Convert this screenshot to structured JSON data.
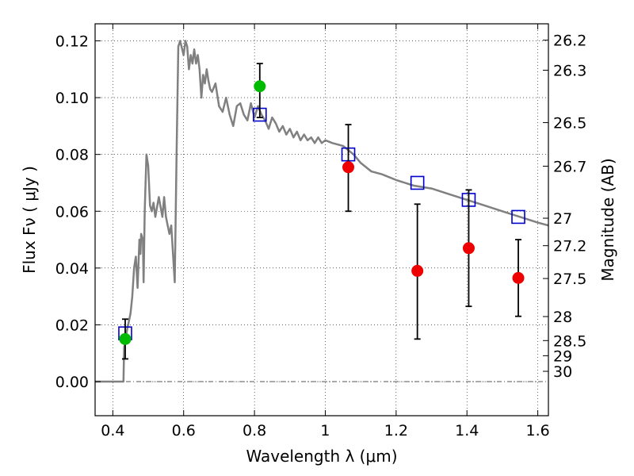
{
  "chart_data": {
    "type": "scatter",
    "xlabel": "Wavelength  λ (μm)",
    "ylabel": "Flux  Fν ( μJy )",
    "ylabel_right": "Magnitude (AB)",
    "xlim": [
      0.35,
      1.63
    ],
    "ylim": [
      -0.012,
      0.126
    ],
    "grid": true,
    "x_ticks": [
      {
        "value": 0.4,
        "label": "0.4"
      },
      {
        "value": 0.6,
        "label": "0.6"
      },
      {
        "value": 0.8,
        "label": "0.8"
      },
      {
        "value": 1.0,
        "label": "1"
      },
      {
        "value": 1.2,
        "label": "1.2"
      },
      {
        "value": 1.4,
        "label": "1.4"
      },
      {
        "value": 1.6,
        "label": "1.6"
      }
    ],
    "y_ticks": [
      {
        "value": 0.0,
        "label": "0.00"
      },
      {
        "value": 0.02,
        "label": "0.02"
      },
      {
        "value": 0.04,
        "label": "0.04"
      },
      {
        "value": 0.06,
        "label": "0.06"
      },
      {
        "value": 0.08,
        "label": "0.08"
      },
      {
        "value": 0.1,
        "label": "0.10"
      },
      {
        "value": 0.12,
        "label": "0.12"
      }
    ],
    "right_ticks": [
      {
        "value": 26.2,
        "label": "26.2"
      },
      {
        "value": 26.3,
        "label": "26.3"
      },
      {
        "value": 26.5,
        "label": "26.5"
      },
      {
        "value": 26.7,
        "label": "26.7"
      },
      {
        "value": 27.0,
        "label": "27"
      },
      {
        "value": 27.2,
        "label": "27.2"
      },
      {
        "value": 27.5,
        "label": "27.5"
      },
      {
        "value": 28.0,
        "label": "28"
      },
      {
        "value": 28.5,
        "label": "28.5"
      },
      {
        "value": 29.0,
        "label": "29"
      },
      {
        "value": 30.0,
        "label": "30"
      }
    ],
    "series": [
      {
        "kind": "line",
        "color": "#808080",
        "x": [
          0.35,
          0.43,
          0.432,
          0.44,
          0.45,
          0.455,
          0.46,
          0.465,
          0.47,
          0.475,
          0.478,
          0.48,
          0.485,
          0.487,
          0.49,
          0.495,
          0.5,
          0.505,
          0.51,
          0.515,
          0.52,
          0.53,
          0.54,
          0.545,
          0.55,
          0.555,
          0.56,
          0.565,
          0.57,
          0.575,
          0.58,
          0.585,
          0.59,
          0.6,
          0.605,
          0.61,
          0.615,
          0.62,
          0.625,
          0.63,
          0.635,
          0.64,
          0.645,
          0.65,
          0.655,
          0.66,
          0.665,
          0.67,
          0.675,
          0.68,
          0.69,
          0.7,
          0.71,
          0.72,
          0.73,
          0.74,
          0.75,
          0.76,
          0.77,
          0.78,
          0.79,
          0.8,
          0.81,
          0.82,
          0.83,
          0.84,
          0.85,
          0.86,
          0.87,
          0.88,
          0.89,
          0.9,
          0.91,
          0.92,
          0.93,
          0.94,
          0.95,
          0.96,
          0.97,
          0.98,
          0.99,
          1.0,
          1.02,
          1.05,
          1.08,
          1.1,
          1.13,
          1.16,
          1.2,
          1.25,
          1.3,
          1.35,
          1.4,
          1.45,
          1.5,
          1.55,
          1.6,
          1.63
        ],
        "y": [
          0.0,
          0.0,
          0.012,
          0.018,
          0.024,
          0.03,
          0.04,
          0.044,
          0.033,
          0.05,
          0.045,
          0.052,
          0.05,
          0.035,
          0.06,
          0.08,
          0.076,
          0.062,
          0.06,
          0.063,
          0.058,
          0.065,
          0.058,
          0.065,
          0.058,
          0.055,
          0.052,
          0.055,
          0.045,
          0.035,
          0.08,
          0.118,
          0.12,
          0.115,
          0.12,
          0.118,
          0.11,
          0.115,
          0.112,
          0.117,
          0.112,
          0.115,
          0.11,
          0.1,
          0.108,
          0.105,
          0.11,
          0.106,
          0.103,
          0.102,
          0.105,
          0.097,
          0.095,
          0.1,
          0.094,
          0.09,
          0.097,
          0.098,
          0.094,
          0.092,
          0.098,
          0.093,
          0.097,
          0.094,
          0.092,
          0.089,
          0.093,
          0.091,
          0.088,
          0.09,
          0.087,
          0.089,
          0.086,
          0.088,
          0.085,
          0.087,
          0.085,
          0.086,
          0.084,
          0.086,
          0.084,
          0.085,
          0.084,
          0.083,
          0.08,
          0.077,
          0.074,
          0.073,
          0.071,
          0.069,
          0.068,
          0.066,
          0.064,
          0.062,
          0.06,
          0.058,
          0.056,
          0.055
        ]
      },
      {
        "kind": "square",
        "color": "#0000cc",
        "x": [
          0.435,
          0.815,
          1.065,
          1.26,
          1.405,
          1.545
        ],
        "y": [
          0.017,
          0.094,
          0.08,
          0.07,
          0.064,
          0.058
        ]
      },
      {
        "kind": "circle",
        "color": "#00bb00",
        "x": [
          0.435,
          0.815
        ],
        "y": [
          0.015,
          0.104
        ],
        "yerr_low": [
          0.008,
          0.093
        ],
        "yerr_high": [
          0.022,
          0.112
        ]
      },
      {
        "kind": "circle",
        "color": "#ee0000",
        "x": [
          1.065,
          1.26,
          1.405,
          1.545
        ],
        "y": [
          0.0755,
          0.039,
          0.047,
          0.0365
        ],
        "yerr_low": [
          0.06,
          0.015,
          0.0265,
          0.023
        ],
        "yerr_high": [
          0.0905,
          0.0625,
          0.0675,
          0.05
        ]
      }
    ]
  }
}
